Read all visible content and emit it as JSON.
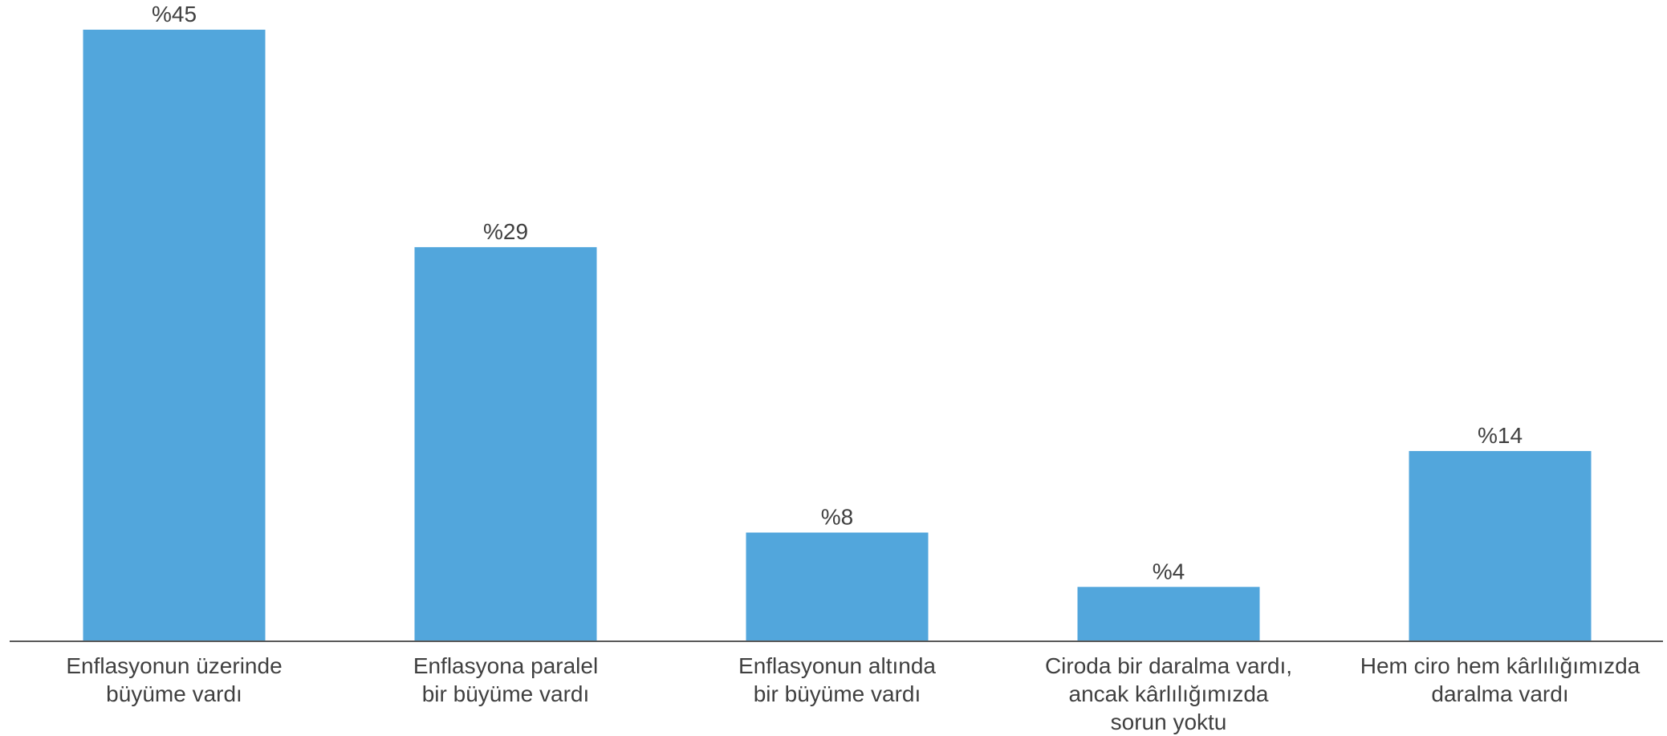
{
  "chart_data": {
    "type": "bar",
    "categories": [
      [
        "Enflasyonun üzerinde",
        "büyüme vardı"
      ],
      [
        "Enflasyona paralel",
        "bir büyüme vardı"
      ],
      [
        "Enflasyonun altında",
        "bir büyüme vardı"
      ],
      [
        "Ciroda bir daralma vardı,",
        "ancak kârlılığımızda",
        "sorun yoktu"
      ],
      [
        "Hem ciro hem kârlılığımızda",
        "daralma vardı"
      ]
    ],
    "values": [
      45,
      29,
      8,
      4,
      14
    ],
    "data_labels": [
      "%45",
      "%29",
      "%8",
      "%4",
      "%14"
    ],
    "ylim": [
      0,
      45
    ],
    "grid": false,
    "legend": "none",
    "bar_color": "#52A6DC",
    "axis_color": "#595959",
    "text_color": "#404040"
  }
}
